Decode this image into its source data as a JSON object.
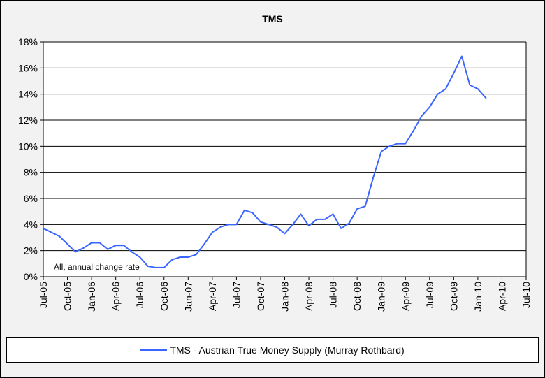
{
  "chart_data": {
    "type": "line",
    "title": "TMS",
    "xlabel": "",
    "ylabel": "",
    "x_ticks": [
      "Jul-05",
      "Oct-05",
      "Jan-06",
      "Apr-06",
      "Jul-06",
      "Oct-06",
      "Jan-07",
      "Apr-07",
      "Jul-07",
      "Oct-07",
      "Jan-08",
      "Apr-08",
      "Jul-08",
      "Oct-08",
      "Jan-09",
      "Apr-09",
      "Jul-09",
      "Oct-09",
      "Jan-10",
      "Apr-10",
      "Jul-10"
    ],
    "y_ticks": [
      "0%",
      "2%",
      "4%",
      "6%",
      "8%",
      "10%",
      "12%",
      "14%",
      "16%",
      "18%"
    ],
    "ylim": [
      0,
      18
    ],
    "grid": "horizontal",
    "annotation": "All, annual change rate",
    "legend_position": "bottom",
    "series": [
      {
        "name": "TMS - Austrian True Money Supply (Murray Rothbard)",
        "color": "#3a66ff",
        "x": [
          "Jul-05",
          "Aug-05",
          "Sep-05",
          "Oct-05",
          "Nov-05",
          "Dec-05",
          "Jan-06",
          "Feb-06",
          "Mar-06",
          "Apr-06",
          "May-06",
          "Jun-06",
          "Jul-06",
          "Aug-06",
          "Sep-06",
          "Oct-06",
          "Nov-06",
          "Dec-06",
          "Jan-07",
          "Feb-07",
          "Mar-07",
          "Apr-07",
          "May-07",
          "Jun-07",
          "Jul-07",
          "Aug-07",
          "Sep-07",
          "Oct-07",
          "Nov-07",
          "Dec-07",
          "Jan-08",
          "Feb-08",
          "Mar-08",
          "Apr-08",
          "May-08",
          "Jun-08",
          "Jul-08",
          "Aug-08",
          "Sep-08",
          "Oct-08",
          "Nov-08",
          "Dec-08",
          "Jan-09",
          "Feb-09",
          "Mar-09",
          "Apr-09",
          "May-09",
          "Jun-09",
          "Jul-09",
          "Aug-09",
          "Sep-09",
          "Oct-09",
          "Nov-09",
          "Dec-09",
          "Jan-10",
          "Feb-10"
        ],
        "values": [
          3.7,
          3.4,
          3.1,
          2.5,
          1.9,
          2.2,
          2.6,
          2.6,
          2.1,
          2.4,
          2.4,
          1.9,
          1.5,
          0.8,
          0.7,
          0.7,
          1.3,
          1.5,
          1.5,
          1.7,
          2.5,
          3.4,
          3.8,
          4.0,
          4.0,
          5.1,
          4.9,
          4.2,
          4.0,
          3.8,
          3.3,
          4.0,
          4.8,
          3.9,
          4.4,
          4.4,
          4.8,
          3.7,
          4.1,
          5.2,
          5.4,
          7.6,
          9.6,
          10.0,
          10.2,
          10.2,
          11.2,
          12.3,
          13.0,
          14.0,
          14.4,
          15.6,
          16.9,
          14.7,
          14.4,
          13.7
        ]
      }
    ]
  }
}
